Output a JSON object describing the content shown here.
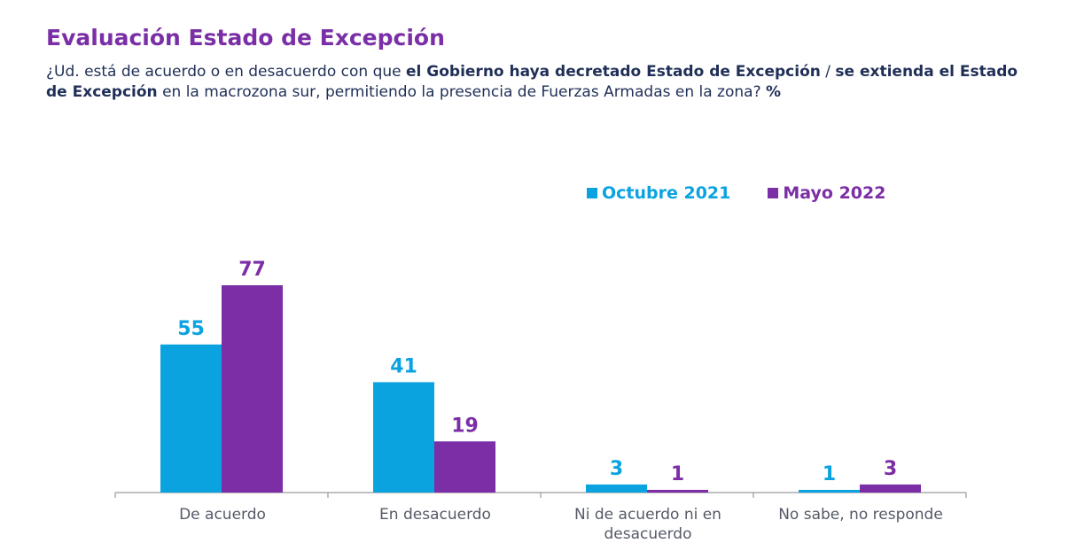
{
  "title": "Evaluación Estado de Excepción",
  "question": {
    "part1": "¿Ud. está de acuerdo o en desacuerdo con que ",
    "bold1": "el Gobierno haya decretado Estado de Excepción",
    "sep": " / ",
    "bold2": "se extienda el Estado de Excepción",
    "part2": " en la macrozona sur, permitiendo la presencia de Fuerzas Armadas en la zona? ",
    "pct": "%"
  },
  "colors": {
    "series1": "#0aa3e0",
    "series2": "#7b2ea6",
    "axis": "#9a9a9a"
  },
  "chart_data": {
    "type": "bar",
    "title": "Evaluación Estado de Excepción",
    "categories": [
      "De acuerdo",
      "En desacuerdo",
      "Ni de acuerdo ni en desacuerdo",
      "No sabe, no responde"
    ],
    "series": [
      {
        "name": "Octubre 2021",
        "values": [
          55,
          41,
          3,
          1
        ]
      },
      {
        "name": "Mayo 2022",
        "values": [
          77,
          19,
          1,
          3
        ]
      }
    ],
    "xlabel": "",
    "ylabel": "%",
    "ylim": [
      0,
      100
    ],
    "grid": false,
    "legend": "top-right"
  }
}
